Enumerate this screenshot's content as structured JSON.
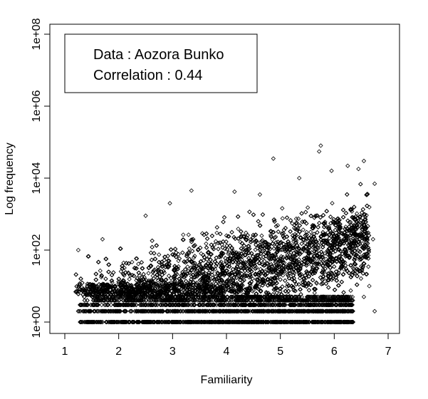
{
  "chart_data": {
    "type": "scatter",
    "xlabel": "Familiarity",
    "ylabel": "Log frequency",
    "log_y": true,
    "xlim": [
      1.0,
      7.2
    ],
    "ylim": [
      0.5,
      100000000
    ],
    "x_ticks": [
      1,
      2,
      3,
      4,
      5,
      6,
      7
    ],
    "x_tick_labels": [
      "1",
      "2",
      "3",
      "4",
      "5",
      "6",
      "7"
    ],
    "y_ticks": [
      1,
      100,
      10000,
      1000000,
      100000000
    ],
    "y_tick_labels": [
      "1e+00",
      "1e+02",
      "1e+04",
      "1e+06",
      "1e+08"
    ],
    "legend": {
      "position": "top-left",
      "lines": [
        "Data : Aozora Bunko",
        "Correlation : 0.44"
      ]
    },
    "marker": "open-diamond",
    "highlight_points": [
      {
        "x": 5.75,
        "y": 80000
      },
      {
        "x": 5.72,
        "y": 55000
      },
      {
        "x": 4.87,
        "y": 35000
      },
      {
        "x": 6.55,
        "y": 30000
      },
      {
        "x": 6.25,
        "y": 22000
      },
      {
        "x": 6.45,
        "y": 18000
      },
      {
        "x": 5.95,
        "y": 16000
      },
      {
        "x": 5.35,
        "y": 10000
      },
      {
        "x": 6.75,
        "y": 7000
      },
      {
        "x": 3.35,
        "y": 4500
      },
      {
        "x": 4.15,
        "y": 4200
      },
      {
        "x": 4.62,
        "y": 3500
      },
      {
        "x": 2.95,
        "y": 2000
      },
      {
        "x": 2.5,
        "y": 900
      },
      {
        "x": 1.7,
        "y": 200
      },
      {
        "x": 1.25,
        "y": 100
      },
      {
        "x": 6.6,
        "y": 300
      },
      {
        "x": 6.72,
        "y": 200
      },
      {
        "x": 6.65,
        "y": 10
      },
      {
        "x": 6.55,
        "y": 5
      },
      {
        "x": 6.75,
        "y": 2
      },
      {
        "x": 6.35,
        "y": 1
      }
    ]
  }
}
